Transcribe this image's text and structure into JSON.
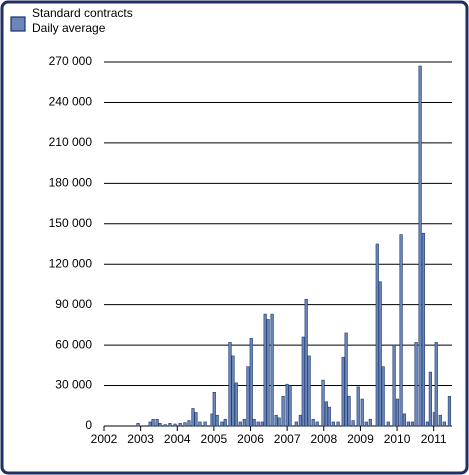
{
  "chart_data": {
    "type": "bar",
    "series": [
      {
        "name": "Standard contracts",
        "color": "#6b86b8",
        "x": [
          2002.93,
          2003.26,
          2003.34,
          2003.45,
          2003.53,
          2003.67,
          2003.8,
          2003.94,
          2004.08,
          2004.21,
          2004.32,
          2004.43,
          2004.51,
          2004.62,
          2004.76,
          2004.95,
          2005.01,
          2005.09,
          2005.22,
          2005.31,
          2005.44,
          2005.52,
          2005.61,
          2005.72,
          2005.83,
          2005.93,
          2006.02,
          2006.1,
          2006.21,
          2006.32,
          2006.4,
          2006.48,
          2006.59,
          2006.7,
          2006.78,
          2006.89,
          2007.0,
          2007.08,
          2007.25,
          2007.36,
          2007.44,
          2007.52,
          2007.6,
          2007.71,
          2007.82,
          2007.98,
          2008.07,
          2008.15,
          2008.26,
          2008.39,
          2008.53,
          2008.61,
          2008.69,
          2008.8,
          2008.94,
          2009.05,
          2009.16,
          2009.27,
          2009.46,
          2009.54,
          2009.62,
          2009.76,
          2009.92,
          2010.01,
          2010.11,
          2010.2,
          2010.31,
          2010.42,
          2010.52,
          2010.63,
          2010.72,
          2010.83,
          2010.91,
          2011.02,
          2011.07,
          2011.18,
          2011.29,
          2011.43
        ],
        "values": [
          2000,
          3000,
          5000,
          5000,
          2000,
          1000,
          2000,
          1500,
          2000,
          2500,
          4000,
          13000,
          10000,
          3000,
          3000,
          9000,
          25000,
          8000,
          3000,
          5000,
          62000,
          52000,
          32000,
          3000,
          5000,
          44000,
          65000,
          5000,
          3000,
          3000,
          83000,
          79000,
          83000,
          8000,
          6000,
          22000,
          31000,
          30000,
          3000,
          8000,
          66000,
          94000,
          52000,
          5000,
          3000,
          34000,
          18000,
          14000,
          3000,
          3000,
          51000,
          69000,
          22000,
          4000,
          29000,
          20000,
          3000,
          5000,
          135000,
          107000,
          44000,
          3000,
          60000,
          20000,
          142000,
          9000,
          3000,
          3000,
          62000,
          267000,
          143000,
          3000,
          40000,
          10000,
          62000,
          8000,
          3000,
          22000
        ]
      }
    ],
    "unit_label": "Daily average",
    "xlim": [
      2002,
      2011.5
    ],
    "xticks": [
      2002,
      2003,
      2004,
      2005,
      2006,
      2007,
      2008,
      2009,
      2010,
      2011
    ],
    "ylim": [
      0,
      270000
    ],
    "yticks": [
      {
        "value": 0,
        "label": "0"
      },
      {
        "value": 30000,
        "label": "30 000"
      },
      {
        "value": 60000,
        "label": "60 000"
      },
      {
        "value": 90000,
        "label": "90 000"
      },
      {
        "value": 120000,
        "label": "120 000"
      },
      {
        "value": 150000,
        "label": "150 000"
      },
      {
        "value": 180000,
        "label": "180 000"
      },
      {
        "value": 210000,
        "label": "210 000"
      },
      {
        "value": 240000,
        "label": "240 000"
      },
      {
        "value": 270000,
        "label": "270 000"
      }
    ],
    "grid": true
  }
}
